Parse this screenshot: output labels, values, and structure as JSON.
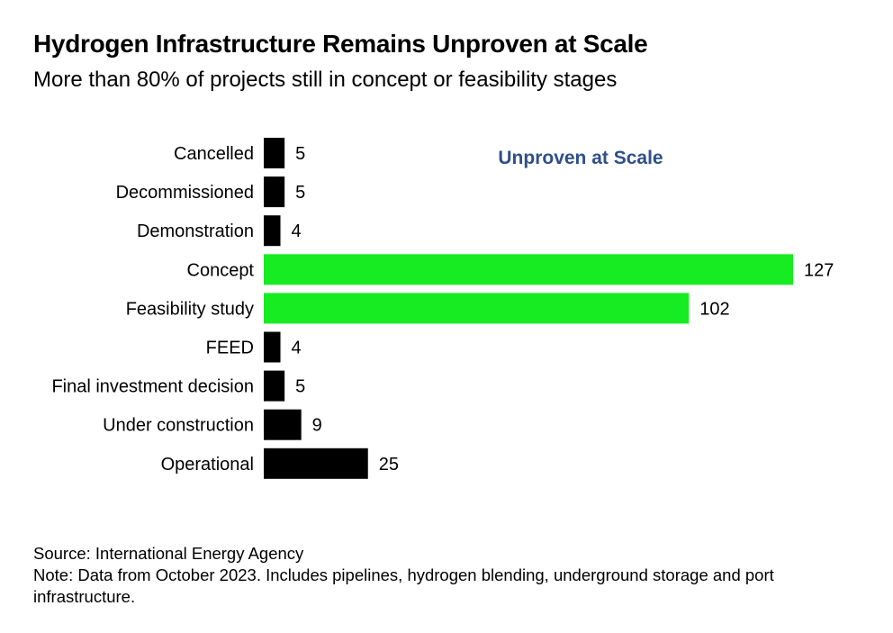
{
  "header": {
    "title": "Hydrogen Infrastructure Remains Unproven at Scale",
    "subtitle": "More than 80% of projects still in concept or feasibility stages"
  },
  "chart_data": {
    "type": "bar",
    "orientation": "horizontal",
    "categories": [
      "Cancelled",
      "Decommissioned",
      "Demonstration",
      "Concept",
      "Feasibility study",
      "FEED",
      "Final investment decision",
      "Under construction",
      "Operational"
    ],
    "values": [
      5,
      5,
      4,
      127,
      102,
      4,
      5,
      9,
      25
    ],
    "highlighted": [
      false,
      false,
      false,
      true,
      true,
      false,
      false,
      false,
      false
    ],
    "annotation": "Unproven at Scale",
    "xlim": [
      0,
      127
    ],
    "grid": false,
    "colors": {
      "default": "#000000",
      "highlight": "#17eb22",
      "annotation": "#2f4f8a"
    }
  },
  "footer": {
    "source": "Source: International Energy Agency",
    "note": "Note: Data from October 2023. Includes pipelines, hydrogen blending, underground storage and port infrastructure."
  }
}
